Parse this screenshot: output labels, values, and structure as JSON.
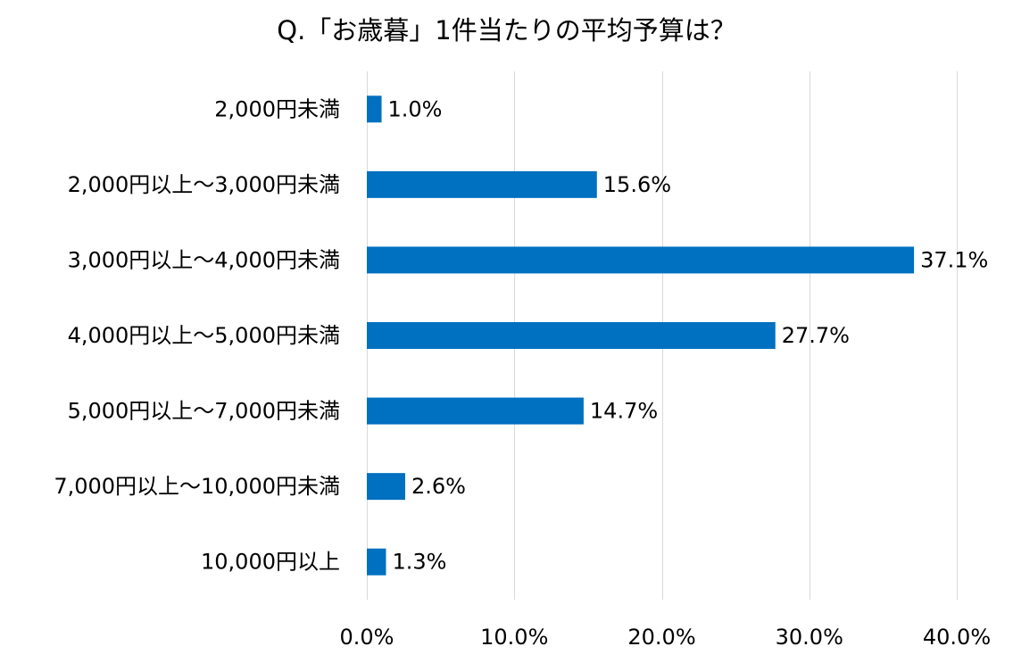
{
  "chart_data": {
    "type": "bar",
    "orientation": "horizontal",
    "title": "Q.「お歳暮」1件当たりの平均予算は？",
    "categories": [
      "2,000円未満",
      "2,000円以上～3,000円未満",
      "3,000円以上～4,000円未満",
      "4,000円以上～5,000円未満",
      "5,000円以上～7,000円未満",
      "7,000円以上～10,000円未満",
      "10,000円以上"
    ],
    "values": [
      1.0,
      15.6,
      37.1,
      27.7,
      14.7,
      2.6,
      1.3
    ],
    "value_labels": [
      "1.0%",
      "15.6%",
      "37.1%",
      "27.7%",
      "14.7%",
      "2.6%",
      "1.3%"
    ],
    "xlim": [
      0,
      40
    ],
    "xticks": [
      0,
      10,
      20,
      30,
      40
    ],
    "xtick_labels": [
      "0.0%",
      "10.0%",
      "20.0%",
      "30.0%",
      "40.0%"
    ],
    "xlabel": "",
    "ylabel": "",
    "grid": "vertical",
    "legend": "none",
    "bar_color": "#0070C0",
    "grid_color": "#D9D9D9"
  }
}
